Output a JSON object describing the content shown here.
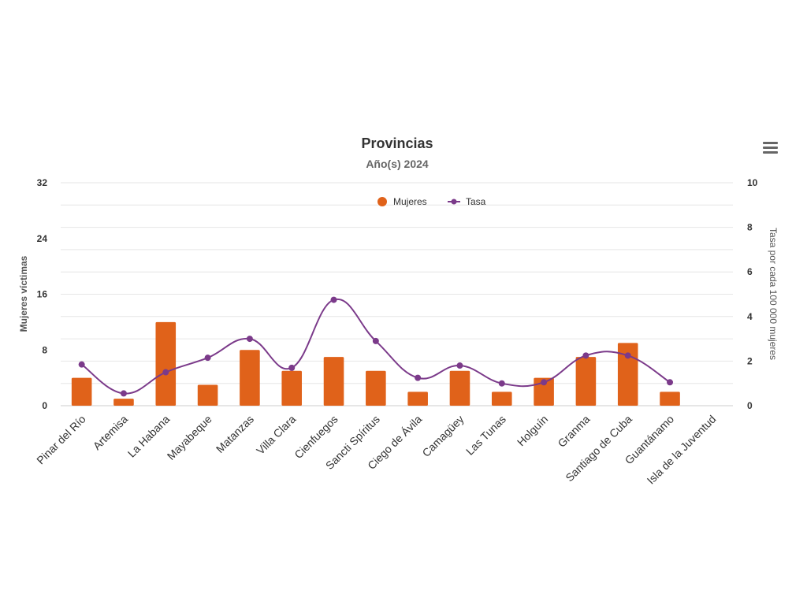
{
  "chart_data": {
    "type": "bar",
    "title": "Provincias",
    "subtitle": "Año(s) 2024",
    "categories": [
      "Pinar del Río",
      "Artemisa",
      "La Habana",
      "Mayabeque",
      "Matanzas",
      "Villa Clara",
      "Cienfuegos",
      "Sancti Spíritus",
      "Ciego de Ávila",
      "Camagüey",
      "Las Tunas",
      "Holguín",
      "Granma",
      "Santiago de Cuba",
      "Guantánamo",
      "Isla de la Juventud"
    ],
    "series": [
      {
        "name": "Mujeres",
        "type": "bar",
        "axis": "left",
        "color": "#e0621a",
        "values": [
          4,
          1,
          12,
          3,
          8,
          5,
          7,
          5,
          2,
          5,
          2,
          4,
          7,
          9,
          2,
          0
        ]
      },
      {
        "name": "Tasa",
        "type": "line",
        "axis": "right",
        "color": "#7b3a8a",
        "values": [
          1.85,
          0.55,
          1.5,
          2.15,
          3.0,
          1.7,
          4.75,
          2.9,
          1.25,
          1.8,
          1.0,
          1.05,
          2.25,
          2.25,
          1.05,
          null
        ]
      }
    ],
    "ylabel": "Mujeres víctimas",
    "y2label": "Tasa por cada 100 000 mujeres",
    "ylim": [
      0,
      32
    ],
    "yticks": [
      0,
      8,
      16,
      24,
      32
    ],
    "y2lim": [
      0,
      10
    ],
    "y2ticks": [
      0,
      2,
      4,
      6,
      8,
      10
    ],
    "grid": true,
    "legend": "top-center"
  },
  "menu_icon": "hamburger-menu-icon"
}
